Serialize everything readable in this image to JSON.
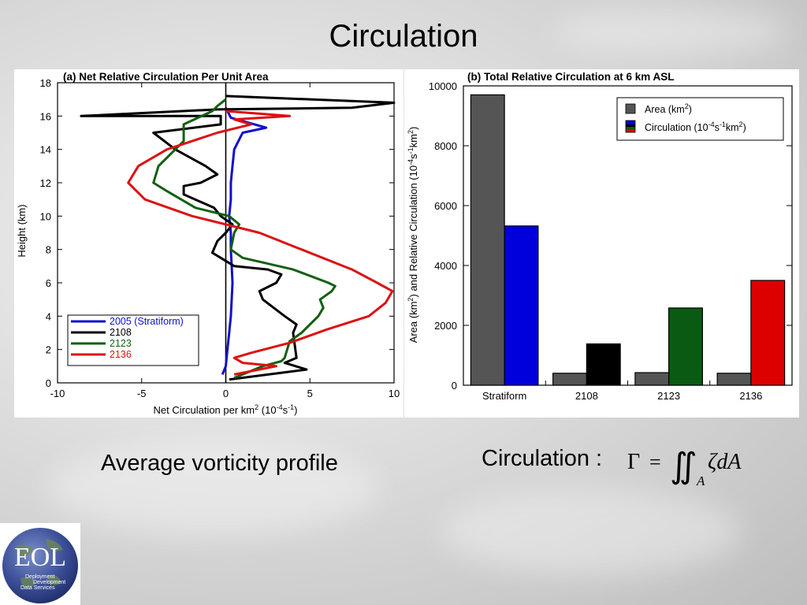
{
  "slide": {
    "title": "Circulation",
    "caption_left": "Average vorticity profile",
    "caption_right": "Circulation :",
    "formula": {
      "lhs": "Γ",
      "eq": "=",
      "integral": "∬",
      "sub": "A",
      "rhs": "ζdA"
    },
    "logo": {
      "main": "EOL",
      "line1": "Deployment",
      "line2": "Development",
      "line3": "Data Services",
      "icon": "globe-icon"
    }
  },
  "chart_data": [
    {
      "type": "line",
      "title": "(a) Net Relative Circulation Per Unit Area",
      "xlabel": "Net Circulation per km",
      "xlabel_sup": "2",
      "xlabel_units": "(10",
      "xlabel_units_sup": "-4",
      "xlabel_units_tail": "s",
      "xlabel_units_sup2": "-1",
      "xlabel_units_end": ")",
      "ylabel": "Height (km)",
      "xlim": [
        -10,
        10
      ],
      "ylim": [
        0,
        18
      ],
      "xticks": [
        "-10",
        "-5",
        "0",
        "5",
        "10"
      ],
      "yticks": [
        "0",
        "2",
        "4",
        "6",
        "8",
        "10",
        "12",
        "14",
        "16",
        "18"
      ],
      "legend_position": "bottom-left",
      "grid": false,
      "series": [
        {
          "name": "2005 (Stratiform)",
          "color": "#1010cc",
          "points": [
            [
              -0.2,
              0.5
            ],
            [
              0,
              1
            ],
            [
              0.1,
              2
            ],
            [
              0.2,
              3
            ],
            [
              0.3,
              4
            ],
            [
              0.35,
              5
            ],
            [
              0.4,
              6
            ],
            [
              0.35,
              7
            ],
            [
              0.3,
              8
            ],
            [
              0.3,
              9
            ],
            [
              0.2,
              10
            ],
            [
              0.3,
              11
            ],
            [
              0.3,
              12
            ],
            [
              0.4,
              13
            ],
            [
              0.5,
              14
            ],
            [
              1.0,
              15
            ],
            [
              2.4,
              15.3
            ],
            [
              0.3,
              15.9
            ],
            [
              0,
              16.5
            ]
          ]
        },
        {
          "name": "2108",
          "color": "#000000",
          "points": [
            [
              0.2,
              0.2
            ],
            [
              4.8,
              0.8
            ],
            [
              3.5,
              1.2
            ],
            [
              4.2,
              1.5
            ],
            [
              4.0,
              3
            ],
            [
              4.2,
              3.5
            ],
            [
              3.5,
              4
            ],
            [
              2.2,
              5
            ],
            [
              2.0,
              5.5
            ],
            [
              3.0,
              6
            ],
            [
              3.3,
              6.5
            ],
            [
              2.5,
              6.8
            ],
            [
              0.5,
              7
            ],
            [
              -0.3,
              7.5
            ],
            [
              -0.8,
              7.8
            ],
            [
              -0.5,
              8.5
            ],
            [
              0,
              9
            ],
            [
              0.4,
              9.5
            ],
            [
              -0.3,
              10
            ],
            [
              -0.7,
              10.5
            ],
            [
              -2.5,
              11.3
            ],
            [
              -2.5,
              11.8
            ],
            [
              -1.5,
              12
            ],
            [
              -0.5,
              12.5
            ],
            [
              -1.2,
              13
            ],
            [
              -3,
              14
            ],
            [
              -4.3,
              15
            ],
            [
              -0.3,
              15.5
            ],
            [
              -0.3,
              16
            ],
            [
              -8.6,
              16
            ],
            [
              -0.5,
              16.4
            ],
            [
              7.5,
              16.5
            ],
            [
              10,
              16.8
            ],
            [
              0,
              17.2
            ]
          ]
        },
        {
          "name": "2123",
          "color": "#106010",
          "points": [
            [
              0.5,
              0.3
            ],
            [
              2.2,
              1.0
            ],
            [
              3.3,
              1.3
            ],
            [
              3.5,
              1.5
            ],
            [
              3.8,
              2.5
            ],
            [
              4.5,
              3
            ],
            [
              5.5,
              4
            ],
            [
              5.8,
              4.5
            ],
            [
              5.6,
              5
            ],
            [
              6.3,
              5.5
            ],
            [
              6.5,
              5.8
            ],
            [
              6.1,
              6
            ],
            [
              4.0,
              6.8
            ],
            [
              1.0,
              7.5
            ],
            [
              0.3,
              8
            ],
            [
              0.5,
              9
            ],
            [
              0.8,
              9.5
            ],
            [
              0.2,
              10
            ],
            [
              -1.8,
              10.5
            ],
            [
              -3.5,
              11.5
            ],
            [
              -4.3,
              12
            ],
            [
              -4,
              13
            ],
            [
              -3,
              14
            ],
            [
              -2.5,
              14.5
            ],
            [
              -2.5,
              15.5
            ],
            [
              -0.8,
              16.3
            ],
            [
              -0.5,
              16.6
            ],
            [
              0,
              17
            ]
          ]
        },
        {
          "name": "2136",
          "color": "#dd1111",
          "points": [
            [
              0.5,
              0.5
            ],
            [
              3.0,
              1.0
            ],
            [
              1.0,
              1.2
            ],
            [
              0.5,
              1.5
            ],
            [
              1.5,
              1.8
            ],
            [
              3.8,
              2.4
            ],
            [
              6.0,
              3.2
            ],
            [
              8.5,
              4
            ],
            [
              9.5,
              4.8
            ],
            [
              9.9,
              5.5
            ],
            [
              9.0,
              6
            ],
            [
              7.5,
              6.8
            ],
            [
              4.5,
              8
            ],
            [
              2,
              9
            ],
            [
              -2,
              10
            ],
            [
              -4.8,
              11
            ],
            [
              -5.8,
              12
            ],
            [
              -5.2,
              13
            ],
            [
              -3.5,
              14
            ],
            [
              -0.5,
              15
            ],
            [
              1.5,
              15.5
            ],
            [
              0.5,
              15.8
            ],
            [
              3.8,
              16
            ],
            [
              0,
              16.3
            ]
          ]
        }
      ]
    },
    {
      "type": "bar",
      "title": "(b) Total Relative Circulation at 6 km ASL",
      "ylabel": "Area (km",
      "ylabel_sup": "2",
      "ylabel_mid": ") and Relative Circulation (10",
      "ylabel_sup2": "-4",
      "ylabel_mid2": "s",
      "ylabel_sup3": "-1",
      "ylabel_mid3": "km",
      "ylabel_sup4": "2",
      "ylabel_end": ")",
      "ylim": [
        0,
        10000
      ],
      "yticks": [
        "0",
        "2000",
        "4000",
        "6000",
        "8000",
        "10000"
      ],
      "categories": [
        "Stratiform",
        "2108",
        "2123",
        "2136"
      ],
      "legend_position": "top-right",
      "series": [
        {
          "name": "Area (km",
          "name_sup": "2",
          "name_end": ")",
          "color": "#555555",
          "values": [
            9700,
            400,
            420,
            400
          ]
        },
        {
          "name": "Circulation (10",
          "name_sup": "-4",
          "name_mid": "s",
          "name_sup2": "-1",
          "name_mid2": "km",
          "name_sup3": "2",
          "name_end": ")",
          "colors": [
            "#0000dd",
            "#000000",
            "#0a5a14",
            "#dd0000"
          ],
          "values": [
            5320,
            1380,
            2580,
            3500
          ]
        }
      ]
    }
  ]
}
